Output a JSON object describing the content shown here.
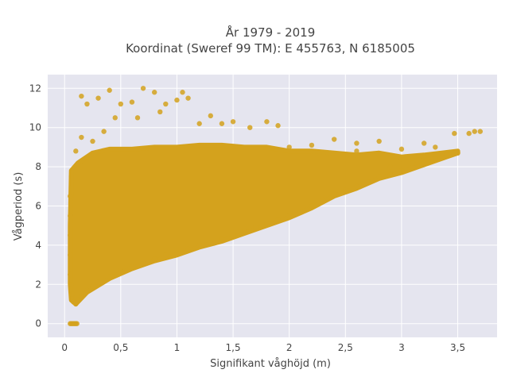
{
  "chart_data": {
    "type": "scatter",
    "title_lines": [
      "År 1979 - 2019",
      "Koordinat (Sweref 99 TM): E 455763, N 6185005"
    ],
    "xlabel": "Signifikant våghöjd (m)",
    "ylabel": "Vågperiod (s)",
    "xlim": [
      -0.15,
      3.85
    ],
    "ylim": [
      -0.7,
      12.7
    ],
    "x_ticks": [
      0,
      0.5,
      1,
      1.5,
      2,
      2.5,
      3,
      3.5
    ],
    "x_tick_labels": [
      "0",
      "0,5",
      "1",
      "1,5",
      "2",
      "2,5",
      "3",
      "3,5"
    ],
    "y_ticks": [
      0,
      2,
      4,
      6,
      8,
      10,
      12
    ],
    "y_tick_labels": [
      "0",
      "2",
      "4",
      "6",
      "8",
      "10",
      "12"
    ],
    "grid": true,
    "legend": false,
    "marker_color": "#D4A21D",
    "plot_background": "#E5E5EF",
    "points": [
      [
        0.05,
        0
      ],
      [
        0.06,
        0
      ],
      [
        0.07,
        0
      ],
      [
        0.08,
        0
      ],
      [
        0.09,
        0
      ],
      [
        0.1,
        0
      ],
      [
        0.11,
        0
      ],
      [
        0.08,
        1.1
      ],
      [
        0.1,
        1.0
      ],
      [
        0.12,
        1.2
      ],
      [
        0.07,
        1.5
      ],
      [
        0.15,
        1.4
      ],
      [
        0.2,
        1.7
      ],
      [
        0.25,
        1.9
      ],
      [
        0.3,
        2.1
      ],
      [
        0.4,
        2.4
      ],
      [
        0.5,
        2.7
      ],
      [
        0.6,
        2.9
      ],
      [
        0.7,
        3.1
      ],
      [
        0.8,
        3.3
      ],
      [
        0.9,
        3.5
      ],
      [
        1.0,
        3.6
      ],
      [
        1.1,
        3.8
      ],
      [
        1.2,
        4.0
      ],
      [
        1.3,
        4.1
      ],
      [
        1.4,
        4.3
      ],
      [
        1.5,
        4.5
      ],
      [
        1.6,
        4.7
      ],
      [
        1.7,
        4.9
      ],
      [
        1.8,
        5.1
      ],
      [
        1.9,
        5.3
      ],
      [
        2.0,
        5.5
      ],
      [
        2.1,
        5.7
      ],
      [
        2.2,
        6.0
      ],
      [
        2.3,
        6.3
      ],
      [
        2.4,
        6.6
      ],
      [
        2.5,
        6.8
      ],
      [
        2.6,
        7.0
      ],
      [
        2.7,
        7.2
      ],
      [
        2.8,
        7.5
      ],
      [
        2.9,
        7.6
      ],
      [
        3.0,
        7.8
      ],
      [
        3.1,
        8.0
      ],
      [
        3.2,
        8.2
      ],
      [
        3.3,
        8.4
      ],
      [
        3.4,
        8.6
      ],
      [
        3.5,
        8.7
      ],
      [
        3.6,
        9.7
      ],
      [
        3.65,
        9.8
      ],
      [
        3.7,
        9.8
      ],
      [
        3.47,
        9.7
      ],
      [
        3.3,
        9.0
      ],
      [
        3.2,
        9.2
      ],
      [
        3.0,
        8.9
      ],
      [
        2.8,
        9.3
      ],
      [
        2.6,
        9.2
      ],
      [
        2.4,
        9.4
      ],
      [
        2.2,
        9.1
      ],
      [
        2.0,
        9.0
      ],
      [
        1.8,
        10.3
      ],
      [
        1.9,
        10.1
      ],
      [
        1.65,
        10.0
      ],
      [
        1.5,
        10.3
      ],
      [
        1.4,
        10.2
      ],
      [
        1.3,
        10.6
      ],
      [
        1.2,
        10.2
      ],
      [
        1.1,
        11.5
      ],
      [
        1.0,
        11.4
      ],
      [
        0.9,
        11.2
      ],
      [
        0.8,
        11.8
      ],
      [
        0.7,
        12.0
      ],
      [
        0.6,
        11.3
      ],
      [
        0.5,
        11.2
      ],
      [
        0.4,
        11.9
      ],
      [
        0.3,
        11.5
      ],
      [
        0.2,
        11.2
      ],
      [
        0.15,
        11.6
      ],
      [
        1.05,
        11.8
      ],
      [
        0.85,
        10.8
      ],
      [
        0.65,
        10.5
      ],
      [
        0.45,
        10.5
      ],
      [
        0.35,
        9.8
      ],
      [
        0.25,
        9.3
      ],
      [
        0.15,
        9.5
      ],
      [
        0.1,
        8.8
      ],
      [
        0.08,
        7.9
      ],
      [
        0.06,
        7.5
      ],
      [
        0.05,
        6.5
      ],
      [
        0.05,
        5.5
      ],
      [
        0.05,
        4.5
      ],
      [
        0.05,
        3.5
      ],
      [
        0.05,
        2.5
      ],
      [
        0.06,
        2.0
      ],
      [
        2.6,
        8.8
      ],
      [
        2.8,
        8.6
      ],
      [
        3.0,
        8.4
      ],
      [
        3.2,
        8.5
      ],
      [
        3.1,
        8.2
      ],
      [
        2.9,
        8.0
      ]
    ]
  }
}
